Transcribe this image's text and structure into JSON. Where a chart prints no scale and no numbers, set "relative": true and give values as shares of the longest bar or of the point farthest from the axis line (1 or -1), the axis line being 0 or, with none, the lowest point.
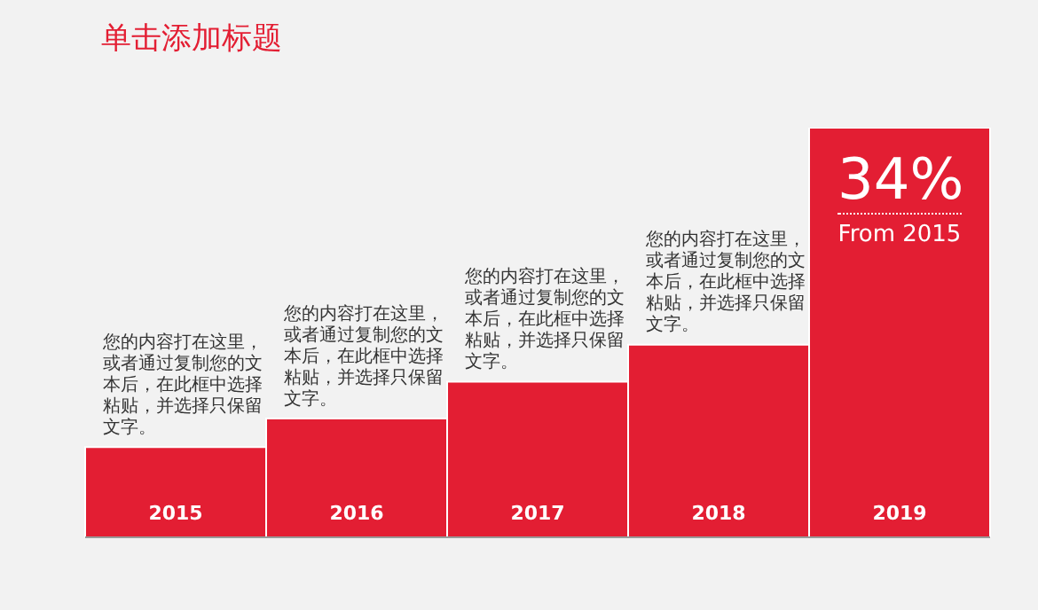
{
  "chart_data": {
    "type": "bar",
    "title": "单击添加标题",
    "relative": true,
    "categories": [
      "2015",
      "2016",
      "2017",
      "2018",
      "2019"
    ],
    "values": [
      0.22,
      0.29,
      0.38,
      0.47,
      1
    ],
    "color": "#e31e33",
    "legend": false,
    "grid": false,
    "annotations": [
      "您的内容打在这里，或者通过复制您的文本后，在此框中选择粘贴，并选择只保留文字。",
      "您的内容打在这里，或者通过复制您的文本后，在此框中选择粘贴，并选择只保留文字。",
      "您的内容打在这里，或者通过复制您的文本后，在此框中选择粘贴，并选择只保留文字。",
      "您的内容打在这里，或者通过复制您的文本后，在此框中选择粘贴，并选择只保留文字。",
      "34%",
      "From 2015"
    ]
  }
}
